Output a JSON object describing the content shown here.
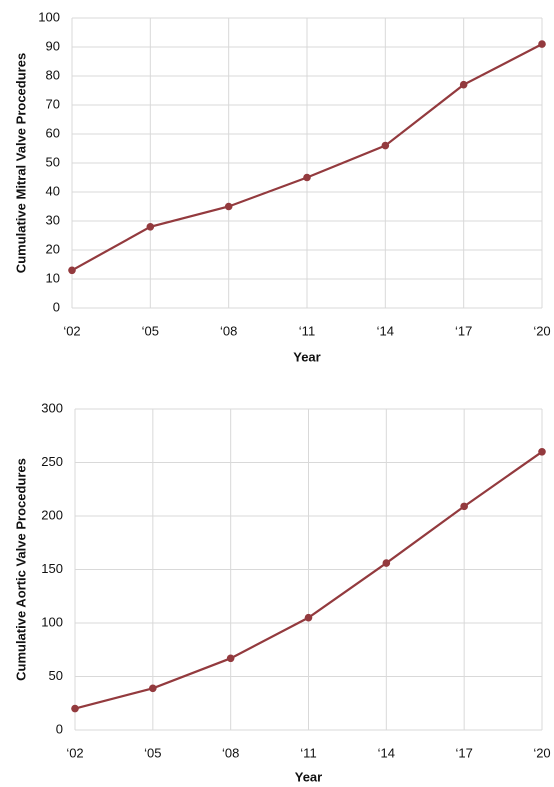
{
  "chart_data": [
    {
      "type": "line",
      "xlabel": "Year",
      "ylabel": "Cumulative Mitral Valve Procedures",
      "categories": [
        "‘02",
        "‘05",
        "‘08",
        "‘11",
        "‘14",
        "‘17",
        "‘20"
      ],
      "values": [
        13,
        28,
        35,
        45,
        56,
        77,
        91
      ],
      "color": "#933a3e",
      "ylim": [
        0,
        100
      ],
      "yticks": [
        0,
        10,
        20,
        30,
        40,
        50,
        60,
        70,
        80,
        90,
        100
      ],
      "grid": true
    },
    {
      "type": "line",
      "xlabel": "Year",
      "ylabel": "Cumulative Aortic Valve Procedures",
      "categories": [
        "‘02",
        "‘05",
        "‘08",
        "‘11",
        "‘14",
        "‘17",
        "‘20"
      ],
      "values": [
        20,
        39,
        67,
        105,
        156,
        209,
        260
      ],
      "color": "#933a3e",
      "ylim": [
        0,
        300
      ],
      "yticks": [
        0,
        50,
        100,
        150,
        200,
        250,
        300
      ],
      "grid": true
    }
  ]
}
